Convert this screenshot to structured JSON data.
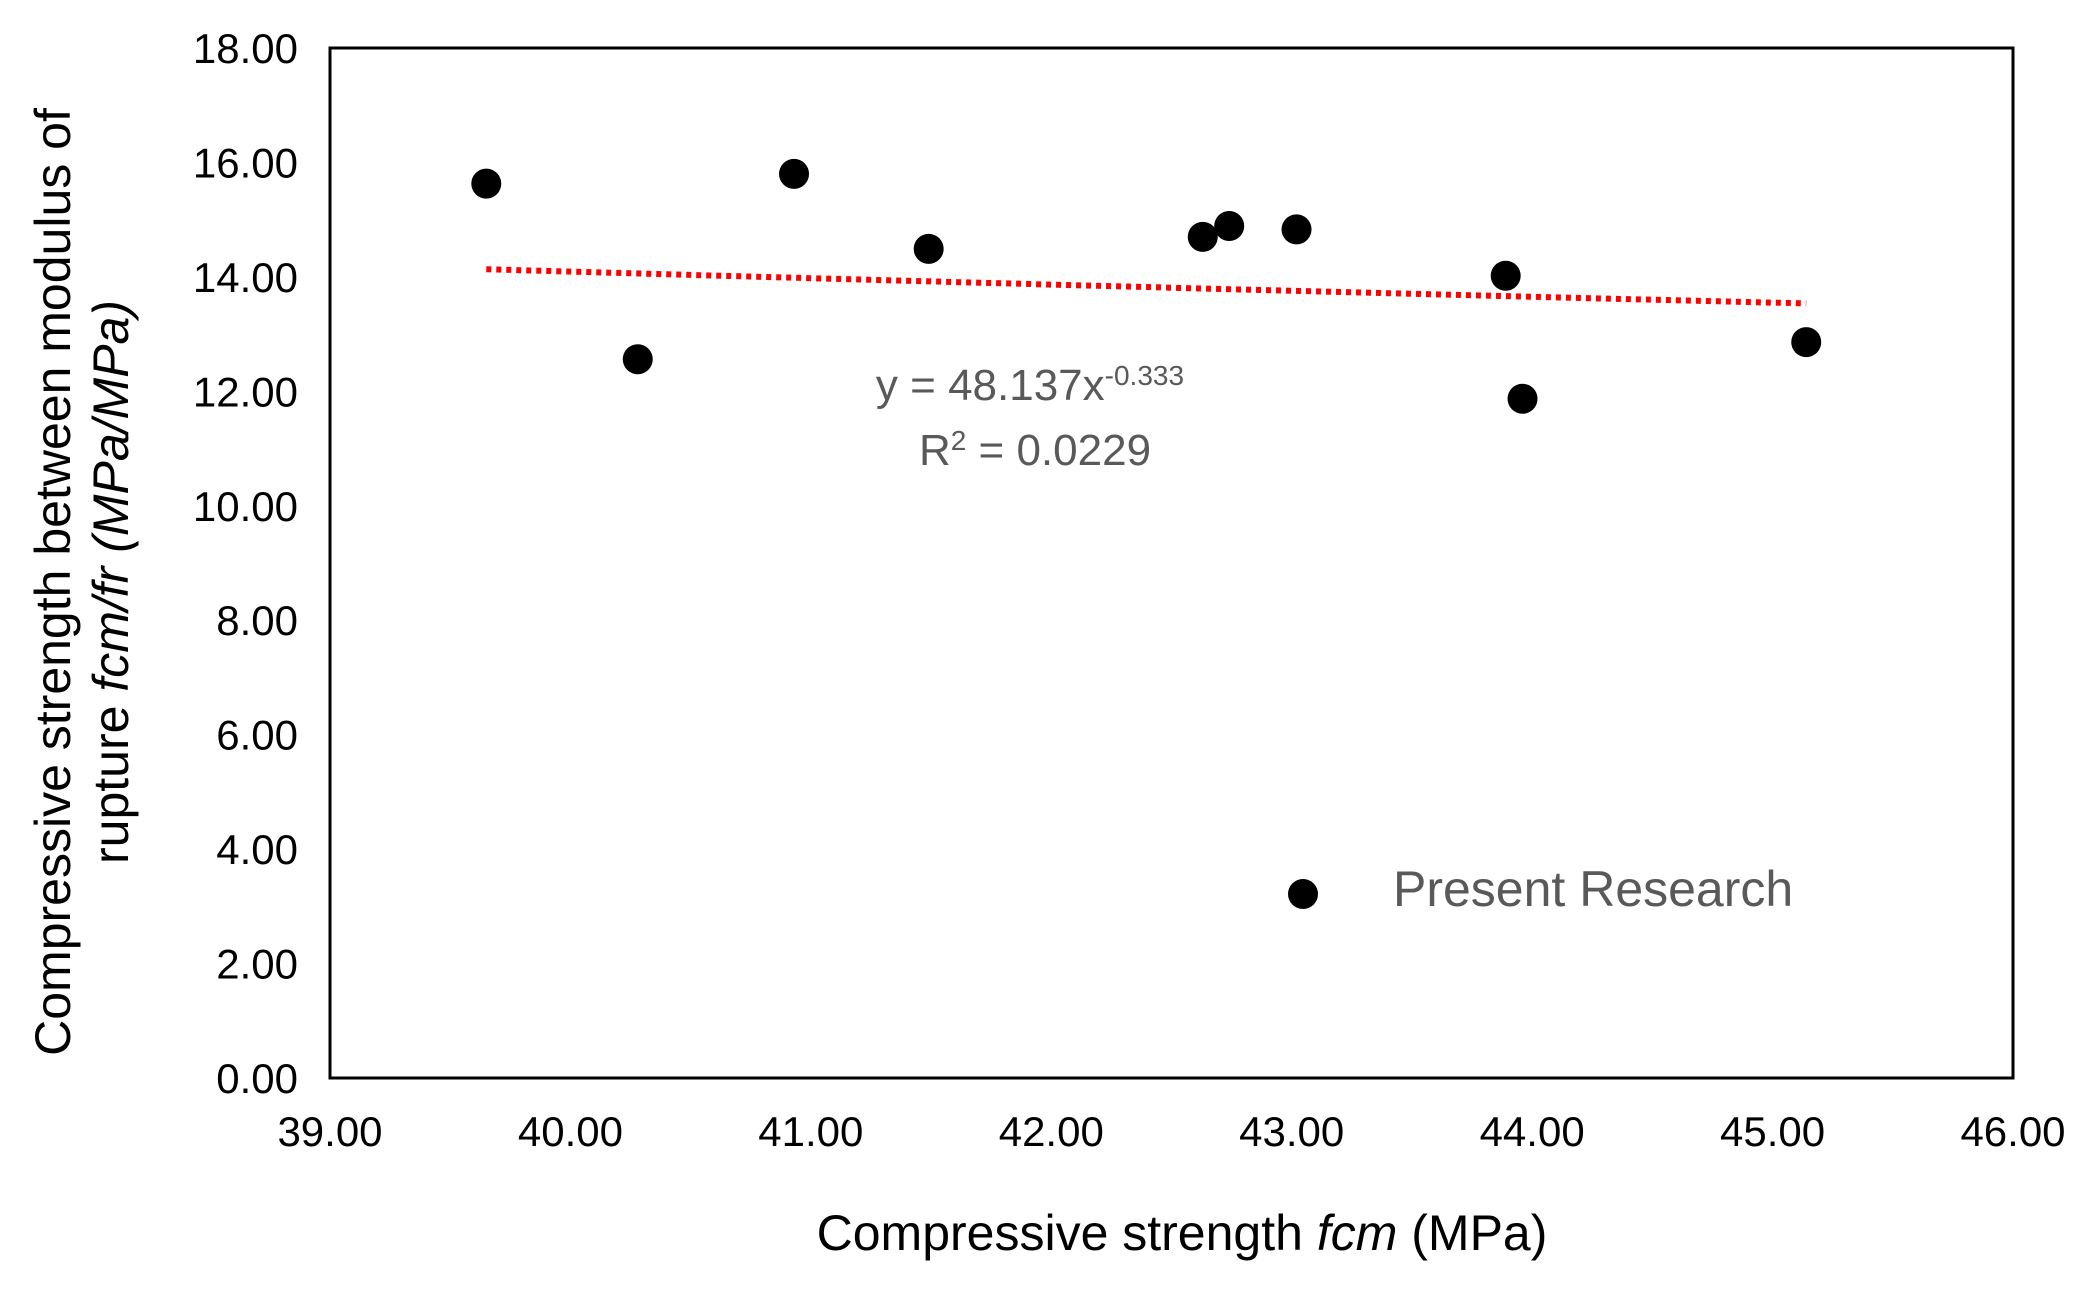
{
  "chart_data": {
    "type": "scatter",
    "title": "",
    "xlabel": {
      "prefix": "Compressive strength ",
      "italic": "fcm",
      "suffix": " (MPa)"
    },
    "ylabel": {
      "line1": "Compressive strength between modulus of",
      "line2_prefix": "rupture ",
      "line2_italic": "fcm/fr (MPa/MPa)"
    },
    "xlim": [
      39,
      46
    ],
    "ylim": [
      0,
      18
    ],
    "x_ticks": [
      "39.00",
      "40.00",
      "41.00",
      "42.00",
      "43.00",
      "44.00",
      "45.00",
      "46.00"
    ],
    "y_ticks": [
      "0.00",
      "2.00",
      "4.00",
      "6.00",
      "8.00",
      "10.00",
      "12.00",
      "14.00",
      "16.00",
      "18.00"
    ],
    "grid": false,
    "legend_position": "bottom-right",
    "series": [
      {
        "name": "Present Research",
        "marker": "circle",
        "color": "#000000",
        "points": [
          {
            "x": 39.65,
            "y": 15.63
          },
          {
            "x": 40.28,
            "y": 12.56
          },
          {
            "x": 40.93,
            "y": 15.8
          },
          {
            "x": 41.49,
            "y": 14.49
          },
          {
            "x": 42.63,
            "y": 14.7
          },
          {
            "x": 42.74,
            "y": 14.89
          },
          {
            "x": 43.02,
            "y": 14.83
          },
          {
            "x": 43.89,
            "y": 14.02
          },
          {
            "x": 43.96,
            "y": 11.87
          },
          {
            "x": 45.14,
            "y": 12.86
          }
        ]
      }
    ],
    "trendline": {
      "type": "power",
      "coefficient": 48.137,
      "exponent": -0.333,
      "color": "#ff0000",
      "style": "dotted",
      "x_range": [
        39.65,
        45.14
      ]
    },
    "annotation": {
      "equation_prefix": "y = 48.137x",
      "equation_exponent": "-0.333",
      "r2_prefix": "R",
      "r2_exponent": "2",
      "r2_value": " = 0.0229"
    }
  }
}
